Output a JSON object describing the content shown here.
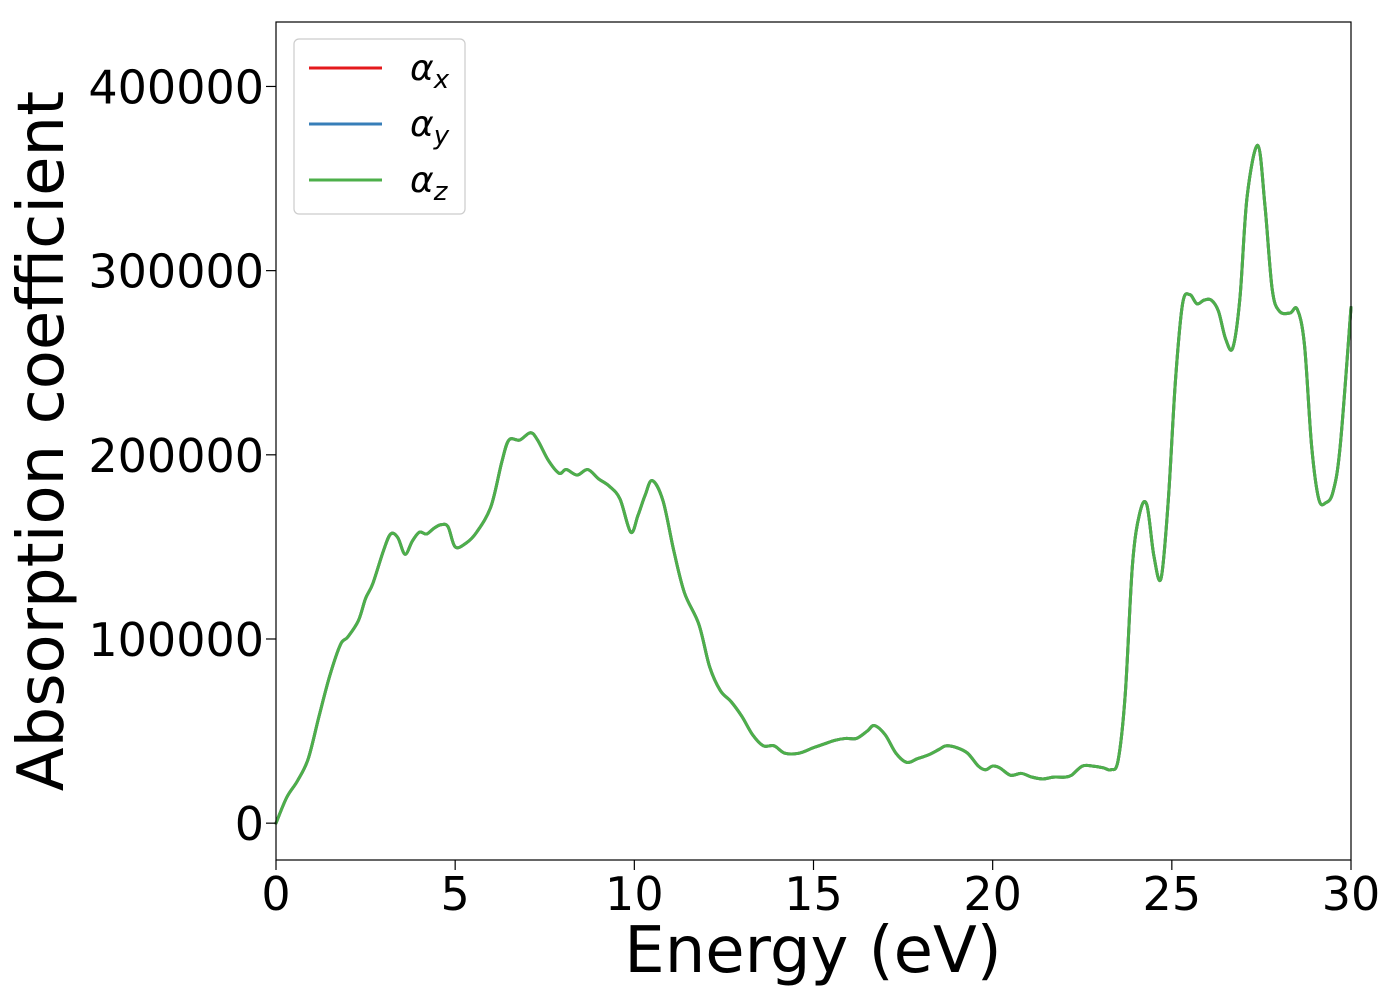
{
  "chart_data": {
    "type": "line",
    "title": "",
    "xlabel": "Energy (eV)",
    "ylabel": "Absorption coefficient",
    "xlim": [
      0,
      30
    ],
    "ylim": [
      -20000,
      435000
    ],
    "xticks": [
      0,
      5,
      10,
      15,
      20,
      25,
      30
    ],
    "xtick_labels": [
      "0",
      "5",
      "10",
      "15",
      "20",
      "25",
      "30"
    ],
    "yticks": [
      0,
      100000,
      200000,
      300000,
      400000
    ],
    "ytick_labels": [
      "0",
      "100000",
      "200000",
      "300000",
      "400000"
    ],
    "grid": false,
    "legend_position": "top-left",
    "x": [
      0,
      0.3,
      0.6,
      0.9,
      1.2,
      1.5,
      1.8,
      2.0,
      2.3,
      2.5,
      2.7,
      3.0,
      3.2,
      3.4,
      3.6,
      3.8,
      4.0,
      4.2,
      4.4,
      4.6,
      4.8,
      5.0,
      5.3,
      5.6,
      6.0,
      6.3,
      6.5,
      6.8,
      7.1,
      7.3,
      7.6,
      7.9,
      8.1,
      8.4,
      8.7,
      9.0,
      9.3,
      9.6,
      9.9,
      10.1,
      10.3,
      10.5,
      10.8,
      11.1,
      11.4,
      11.8,
      12.1,
      12.4,
      12.7,
      13.0,
      13.3,
      13.6,
      13.9,
      14.2,
      14.6,
      15.0,
      15.3,
      15.6,
      15.9,
      16.2,
      16.5,
      16.7,
      17.0,
      17.3,
      17.6,
      17.9,
      18.2,
      18.5,
      18.7,
      19.0,
      19.3,
      19.6,
      19.8,
      20.0,
      20.2,
      20.5,
      20.8,
      21.1,
      21.4,
      21.7,
      22.0,
      22.2,
      22.5,
      22.8,
      23.1,
      23.3,
      23.5,
      23.7,
      23.9,
      24.1,
      24.3,
      24.5,
      24.7,
      24.9,
      25.1,
      25.3,
      25.5,
      25.7,
      25.9,
      26.1,
      26.3,
      26.5,
      26.7,
      26.9,
      27.1,
      27.4,
      27.6,
      27.8,
      28.0,
      28.3,
      28.5,
      28.7,
      28.9,
      29.1,
      29.3,
      29.5,
      29.7,
      30.0
    ],
    "series": [
      {
        "name": "αx",
        "color": "#e41a1c",
        "values": [
          0,
          14000,
          23000,
          35000,
          58000,
          80000,
          97000,
          101000,
          110000,
          122000,
          130000,
          148000,
          157000,
          155000,
          146000,
          153000,
          158000,
          157000,
          160000,
          162000,
          161000,
          150000,
          152000,
          158000,
          172000,
          196000,
          208000,
          208000,
          212000,
          208000,
          197000,
          190000,
          192000,
          189000,
          192000,
          187000,
          183000,
          176000,
          158000,
          167000,
          178000,
          186000,
          175000,
          148000,
          125000,
          108000,
          85000,
          72000,
          66000,
          58000,
          48000,
          42000,
          42000,
          38000,
          38000,
          41000,
          43000,
          45000,
          46000,
          46000,
          50000,
          53000,
          48000,
          38000,
          33000,
          35000,
          37000,
          40000,
          42000,
          41000,
          38000,
          31000,
          29000,
          31000,
          30000,
          26000,
          27000,
          25000,
          24000,
          25000,
          25000,
          26000,
          31000,
          31000,
          30000,
          29000,
          34000,
          70000,
          140000,
          168000,
          173000,
          145000,
          133000,
          175000,
          240000,
          282000,
          287000,
          282000,
          284000,
          284000,
          278000,
          263000,
          258000,
          285000,
          340000,
          368000,
          335000,
          290000,
          278000,
          277000,
          279000,
          260000,
          205000,
          176000,
          174000,
          180000,
          205000,
          280000
        ]
      },
      {
        "name": "αy",
        "color": "#377eb8",
        "values": [
          0,
          14000,
          23000,
          35000,
          58000,
          80000,
          97000,
          101000,
          110000,
          122000,
          130000,
          148000,
          157000,
          155000,
          146000,
          153000,
          158000,
          157000,
          160000,
          162000,
          161000,
          150000,
          152000,
          158000,
          172000,
          196000,
          208000,
          208000,
          212000,
          208000,
          197000,
          190000,
          192000,
          189000,
          192000,
          187000,
          183000,
          176000,
          158000,
          167000,
          178000,
          186000,
          175000,
          148000,
          125000,
          108000,
          85000,
          72000,
          66000,
          58000,
          48000,
          42000,
          42000,
          38000,
          38000,
          41000,
          43000,
          45000,
          46000,
          46000,
          50000,
          53000,
          48000,
          38000,
          33000,
          35000,
          37000,
          40000,
          42000,
          41000,
          38000,
          31000,
          29000,
          31000,
          30000,
          26000,
          27000,
          25000,
          24000,
          25000,
          25000,
          26000,
          31000,
          31000,
          30000,
          29000,
          34000,
          70000,
          140000,
          168000,
          173000,
          145000,
          133000,
          175000,
          240000,
          282000,
          287000,
          282000,
          284000,
          284000,
          278000,
          263000,
          258000,
          285000,
          340000,
          368000,
          335000,
          290000,
          278000,
          277000,
          279000,
          260000,
          205000,
          176000,
          174000,
          180000,
          205000,
          280000
        ]
      },
      {
        "name": "αz",
        "color": "#4daf4a",
        "values": [
          0,
          14000,
          23000,
          35000,
          58000,
          80000,
          97000,
          101000,
          110000,
          122000,
          130000,
          148000,
          157000,
          155000,
          146000,
          153000,
          158000,
          157000,
          160000,
          162000,
          161000,
          150000,
          152000,
          158000,
          172000,
          196000,
          208000,
          208000,
          212000,
          208000,
          197000,
          190000,
          192000,
          189000,
          192000,
          187000,
          183000,
          176000,
          158000,
          167000,
          178000,
          186000,
          175000,
          148000,
          125000,
          108000,
          85000,
          72000,
          66000,
          58000,
          48000,
          42000,
          42000,
          38000,
          38000,
          41000,
          43000,
          45000,
          46000,
          46000,
          50000,
          53000,
          48000,
          38000,
          33000,
          35000,
          37000,
          40000,
          42000,
          41000,
          38000,
          31000,
          29000,
          31000,
          30000,
          26000,
          27000,
          25000,
          24000,
          25000,
          25000,
          26000,
          31000,
          31000,
          30000,
          29000,
          34000,
          70000,
          140000,
          168000,
          173000,
          145000,
          133000,
          175000,
          240000,
          282000,
          287000,
          282000,
          284000,
          284000,
          278000,
          263000,
          258000,
          285000,
          340000,
          368000,
          335000,
          290000,
          278000,
          277000,
          279000,
          260000,
          205000,
          176000,
          174000,
          180000,
          205000,
          280000
        ]
      }
    ],
    "legend": [
      {
        "symbol": "α",
        "subscript": "x",
        "color": "#e41a1c"
      },
      {
        "symbol": "α",
        "subscript": "y",
        "color": "#377eb8"
      },
      {
        "symbol": "α",
        "subscript": "z",
        "color": "#4daf4a"
      }
    ]
  }
}
